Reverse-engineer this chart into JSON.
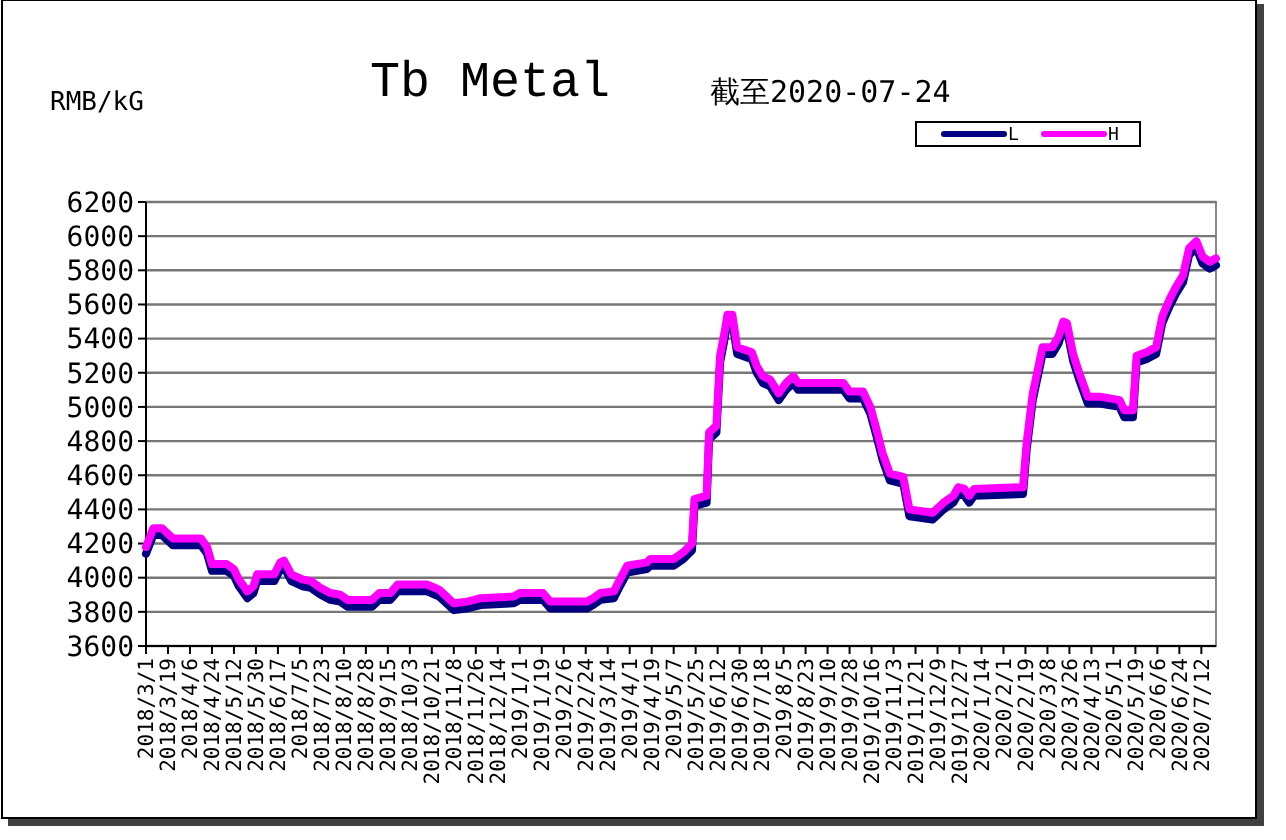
{
  "chart_data": {
    "type": "line",
    "title": "Tb Metal",
    "subtitle": "截至2020-07-24",
    "ylabel": "RMB/kG",
    "x": [
      "2018-03-01",
      "2018-03-07",
      "2018-03-14",
      "2018-03-23",
      "2018-04-15",
      "2018-04-20",
      "2018-04-24",
      "2018-05-06",
      "2018-05-12",
      "2018-05-16",
      "2018-05-23",
      "2018-05-28",
      "2018-05-31",
      "2018-06-14",
      "2018-06-19",
      "2018-06-22",
      "2018-06-28",
      "2018-07-07",
      "2018-07-14",
      "2018-07-22",
      "2018-07-30",
      "2018-08-07",
      "2018-08-13",
      "2018-09-02",
      "2018-09-08",
      "2018-09-17",
      "2018-09-23",
      "2018-10-17",
      "2018-10-27",
      "2018-11-02",
      "2018-11-08",
      "2018-11-19",
      "2018-11-30",
      "2018-12-27",
      "2019-01-01",
      "2019-01-20",
      "2019-01-26",
      "2019-02-25",
      "2019-03-02",
      "2019-03-08",
      "2019-03-19",
      "2019-03-24",
      "2019-03-30",
      "2019-04-15",
      "2019-04-18",
      "2019-05-07",
      "2019-05-15",
      "2019-05-22",
      "2019-05-24",
      "2019-06-03",
      "2019-06-05",
      "2019-06-11",
      "2019-06-14",
      "2019-06-18",
      "2019-06-20",
      "2019-06-24",
      "2019-06-28",
      "2019-07-10",
      "2019-07-14",
      "2019-07-19",
      "2019-07-25",
      "2019-08-01",
      "2019-08-07",
      "2019-08-13",
      "2019-08-17",
      "2019-09-23",
      "2019-09-28",
      "2019-10-09",
      "2019-10-15",
      "2019-10-20",
      "2019-10-25",
      "2019-10-31",
      "2019-11-11",
      "2019-11-16",
      "2019-12-05",
      "2019-12-14",
      "2019-12-22",
      "2019-12-26",
      "2019-12-31",
      "2020-01-04",
      "2020-01-08",
      "2020-02-17",
      "2020-02-20",
      "2020-02-25",
      "2020-03-04",
      "2020-03-12",
      "2020-03-17",
      "2020-03-21",
      "2020-03-24",
      "2020-03-29",
      "2020-04-03",
      "2020-04-10",
      "2020-04-20",
      "2020-05-06",
      "2020-05-10",
      "2020-05-17",
      "2020-05-20",
      "2020-05-28",
      "2020-06-05",
      "2020-06-10",
      "2020-06-16",
      "2020-06-21",
      "2020-06-27",
      "2020-07-02",
      "2020-07-08",
      "2020-07-13",
      "2020-07-19",
      "2020-07-24"
    ],
    "series": [
      {
        "name": "L",
        "color": "#000080",
        "values": [
          4140,
          4250,
          4250,
          4190,
          4190,
          4140,
          4040,
          4040,
          4010,
          3950,
          3880,
          3910,
          3980,
          3980,
          4050,
          4060,
          3980,
          3950,
          3940,
          3900,
          3870,
          3860,
          3830,
          3830,
          3870,
          3870,
          3920,
          3920,
          3890,
          3850,
          3810,
          3820,
          3840,
          3850,
          3870,
          3870,
          3820,
          3820,
          3840,
          3870,
          3880,
          3950,
          4030,
          4050,
          4070,
          4070,
          4110,
          4160,
          4420,
          4440,
          4810,
          4850,
          5260,
          5410,
          5500,
          5500,
          5310,
          5280,
          5200,
          5140,
          5120,
          5040,
          5100,
          5140,
          5100,
          5100,
          5050,
          5050,
          4960,
          4830,
          4690,
          4570,
          4550,
          4360,
          4340,
          4400,
          4440,
          4490,
          4480,
          4440,
          4480,
          4490,
          4750,
          5040,
          5310,
          5310,
          5370,
          5460,
          5450,
          5270,
          5160,
          5020,
          5020,
          5000,
          4940,
          4940,
          5260,
          5280,
          5310,
          5490,
          5590,
          5660,
          5730,
          5890,
          5930,
          5840,
          5810,
          5830
        ]
      },
      {
        "name": "H",
        "color": "#ff00ff",
        "values": [
          4180,
          4290,
          4290,
          4230,
          4230,
          4180,
          4080,
          4080,
          4050,
          3990,
          3920,
          3950,
          4020,
          4020,
          4090,
          4100,
          4020,
          3990,
          3980,
          3940,
          3910,
          3900,
          3870,
          3870,
          3910,
          3910,
          3960,
          3960,
          3930,
          3890,
          3850,
          3860,
          3880,
          3890,
          3910,
          3910,
          3860,
          3860,
          3880,
          3910,
          3920,
          3990,
          4070,
          4090,
          4110,
          4110,
          4150,
          4200,
          4460,
          4480,
          4850,
          4890,
          5300,
          5450,
          5540,
          5540,
          5350,
          5320,
          5240,
          5180,
          5160,
          5080,
          5140,
          5180,
          5140,
          5140,
          5090,
          5090,
          5000,
          4870,
          4730,
          4610,
          4590,
          4400,
          4380,
          4440,
          4480,
          4530,
          4520,
          4480,
          4520,
          4530,
          4790,
          5080,
          5350,
          5350,
          5410,
          5500,
          5490,
          5310,
          5200,
          5060,
          5060,
          5040,
          4980,
          4980,
          5300,
          5320,
          5350,
          5530,
          5630,
          5700,
          5770,
          5930,
          5970,
          5880,
          5850,
          5870
        ]
      }
    ],
    "xlim": [
      "2018-03-01",
      "2020-07-24"
    ],
    "xticks": [
      {
        "value": "2018-03-01",
        "label": "2018/3/1"
      },
      {
        "value": "2018-03-19",
        "label": "2018/3/19"
      },
      {
        "value": "2018-04-06",
        "label": "2018/4/6"
      },
      {
        "value": "2018-04-24",
        "label": "2018/4/24"
      },
      {
        "value": "2018-05-12",
        "label": "2018/5/12"
      },
      {
        "value": "2018-05-30",
        "label": "2018/5/30"
      },
      {
        "value": "2018-06-17",
        "label": "2018/6/17"
      },
      {
        "value": "2018-07-05",
        "label": "2018/7/5"
      },
      {
        "value": "2018-07-23",
        "label": "2018/7/23"
      },
      {
        "value": "2018-08-10",
        "label": "2018/8/10"
      },
      {
        "value": "2018-08-28",
        "label": "2018/8/28"
      },
      {
        "value": "2018-09-15",
        "label": "2018/9/15"
      },
      {
        "value": "2018-10-03",
        "label": "2018/10/3"
      },
      {
        "value": "2018-10-21",
        "label": "2018/10/21"
      },
      {
        "value": "2018-11-08",
        "label": "2018/11/8"
      },
      {
        "value": "2018-11-26",
        "label": "2018/11/26"
      },
      {
        "value": "2018-12-14",
        "label": "2018/12/14"
      },
      {
        "value": "2019-01-01",
        "label": "2019/1/1"
      },
      {
        "value": "2019-01-19",
        "label": "2019/1/19"
      },
      {
        "value": "2019-02-06",
        "label": "2019/2/6"
      },
      {
        "value": "2019-02-24",
        "label": "2019/2/24"
      },
      {
        "value": "2019-03-14",
        "label": "2019/3/14"
      },
      {
        "value": "2019-04-01",
        "label": "2019/4/1"
      },
      {
        "value": "2019-04-19",
        "label": "2019/4/19"
      },
      {
        "value": "2019-05-07",
        "label": "2019/5/7"
      },
      {
        "value": "2019-05-25",
        "label": "2019/5/25"
      },
      {
        "value": "2019-06-12",
        "label": "2019/6/12"
      },
      {
        "value": "2019-06-30",
        "label": "2019/6/30"
      },
      {
        "value": "2019-07-18",
        "label": "2019/7/18"
      },
      {
        "value": "2019-08-05",
        "label": "2019/8/5"
      },
      {
        "value": "2019-08-23",
        "label": "2019/8/23"
      },
      {
        "value": "2019-09-10",
        "label": "2019/9/10"
      },
      {
        "value": "2019-09-28",
        "label": "2019/9/28"
      },
      {
        "value": "2019-10-16",
        "label": "2019/10/16"
      },
      {
        "value": "2019-11-03",
        "label": "2019/11/3"
      },
      {
        "value": "2019-11-21",
        "label": "2019/11/21"
      },
      {
        "value": "2019-12-09",
        "label": "2019/12/9"
      },
      {
        "value": "2019-12-27",
        "label": "2019/12/27"
      },
      {
        "value": "2020-01-14",
        "label": "2020/1/14"
      },
      {
        "value": "2020-02-01",
        "label": "2020/2/1"
      },
      {
        "value": "2020-02-19",
        "label": "2020/2/19"
      },
      {
        "value": "2020-03-08",
        "label": "2020/3/8"
      },
      {
        "value": "2020-03-26",
        "label": "2020/3/26"
      },
      {
        "value": "2020-04-13",
        "label": "2020/4/13"
      },
      {
        "value": "2020-05-01",
        "label": "2020/5/1"
      },
      {
        "value": "2020-05-19",
        "label": "2020/5/19"
      },
      {
        "value": "2020-06-06",
        "label": "2020/6/6"
      },
      {
        "value": "2020-06-24",
        "label": "2020/6/24"
      },
      {
        "value": "2020-07-12",
        "label": "2020/7/12"
      }
    ],
    "ylim": [
      3600,
      6200
    ],
    "yticks": [
      3600,
      3800,
      4000,
      4200,
      4400,
      4600,
      4800,
      5000,
      5200,
      5400,
      5600,
      5800,
      6000,
      6200
    ],
    "grid": "y",
    "legend": "top right",
    "marker": "none",
    "line_style": "solid"
  }
}
